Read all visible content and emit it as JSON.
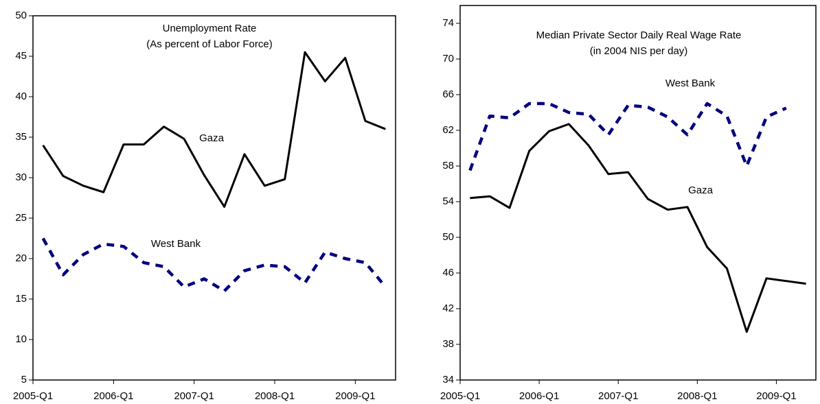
{
  "chart_data": [
    {
      "type": "line",
      "title": "Unemployment Rate",
      "subtitle": "(As percent of Labor Force)",
      "categories": [
        "2005-Q1",
        null,
        null,
        null,
        "2006-Q1",
        null,
        null,
        null,
        "2007-Q1",
        null,
        null,
        null,
        "2008-Q1",
        null,
        null,
        null,
        "2009-Q1",
        null
      ],
      "series": [
        {
          "name": "Gaza",
          "color": "#000000",
          "dashed": false,
          "values": [
            34,
            30.2,
            29,
            28.2,
            34.1,
            34.1,
            36.3,
            34.8,
            30.3,
            26.4,
            32.9,
            29,
            29.8,
            45.5,
            41.9,
            44.8,
            37,
            36
          ]
        },
        {
          "name": "West Bank",
          "color": "#000080",
          "dashed": true,
          "values": [
            22.5,
            18,
            20.5,
            21.8,
            21.5,
            19.5,
            19,
            16.5,
            17.5,
            16,
            18.5,
            19.2,
            19,
            17,
            20.8,
            20,
            19.5,
            16.5
          ]
        }
      ],
      "ylim": [
        5,
        50
      ],
      "yticks": [
        5,
        10,
        15,
        20,
        25,
        30,
        35,
        40,
        45,
        50
      ],
      "grid": false
    },
    {
      "type": "line",
      "title": "Median Private Sector Daily Real Wage Rate",
      "subtitle": "(in 2004 NIS per day)",
      "categories": [
        "2005-Q1",
        null,
        null,
        null,
        "2006-Q1",
        null,
        null,
        null,
        "2007-Q1",
        null,
        null,
        null,
        "2008-Q1",
        null,
        null,
        null,
        "2009-Q1",
        null
      ],
      "series": [
        {
          "name": "West Bank",
          "color": "#000080",
          "dashed": true,
          "values": [
            57.5,
            63.6,
            63.4,
            65,
            65,
            64,
            63.8,
            61.5,
            64.8,
            64.6,
            63.5,
            61.5,
            65,
            63.6,
            58,
            63.5,
            64.5,
            null
          ]
        },
        {
          "name": "Gaza",
          "color": "#000000",
          "dashed": false,
          "values": [
            54.4,
            54.6,
            53.3,
            59.7,
            61.9,
            62.7,
            60.3,
            57.1,
            57.3,
            54.3,
            53.1,
            53.4,
            48.9,
            46.5,
            39.4,
            45.4,
            45.1,
            44.8
          ]
        }
      ],
      "ylim": [
        34,
        76
      ],
      "yticks": [
        34,
        38,
        42,
        46,
        50,
        54,
        58,
        62,
        66,
        70,
        74
      ],
      "grid": false
    }
  ]
}
